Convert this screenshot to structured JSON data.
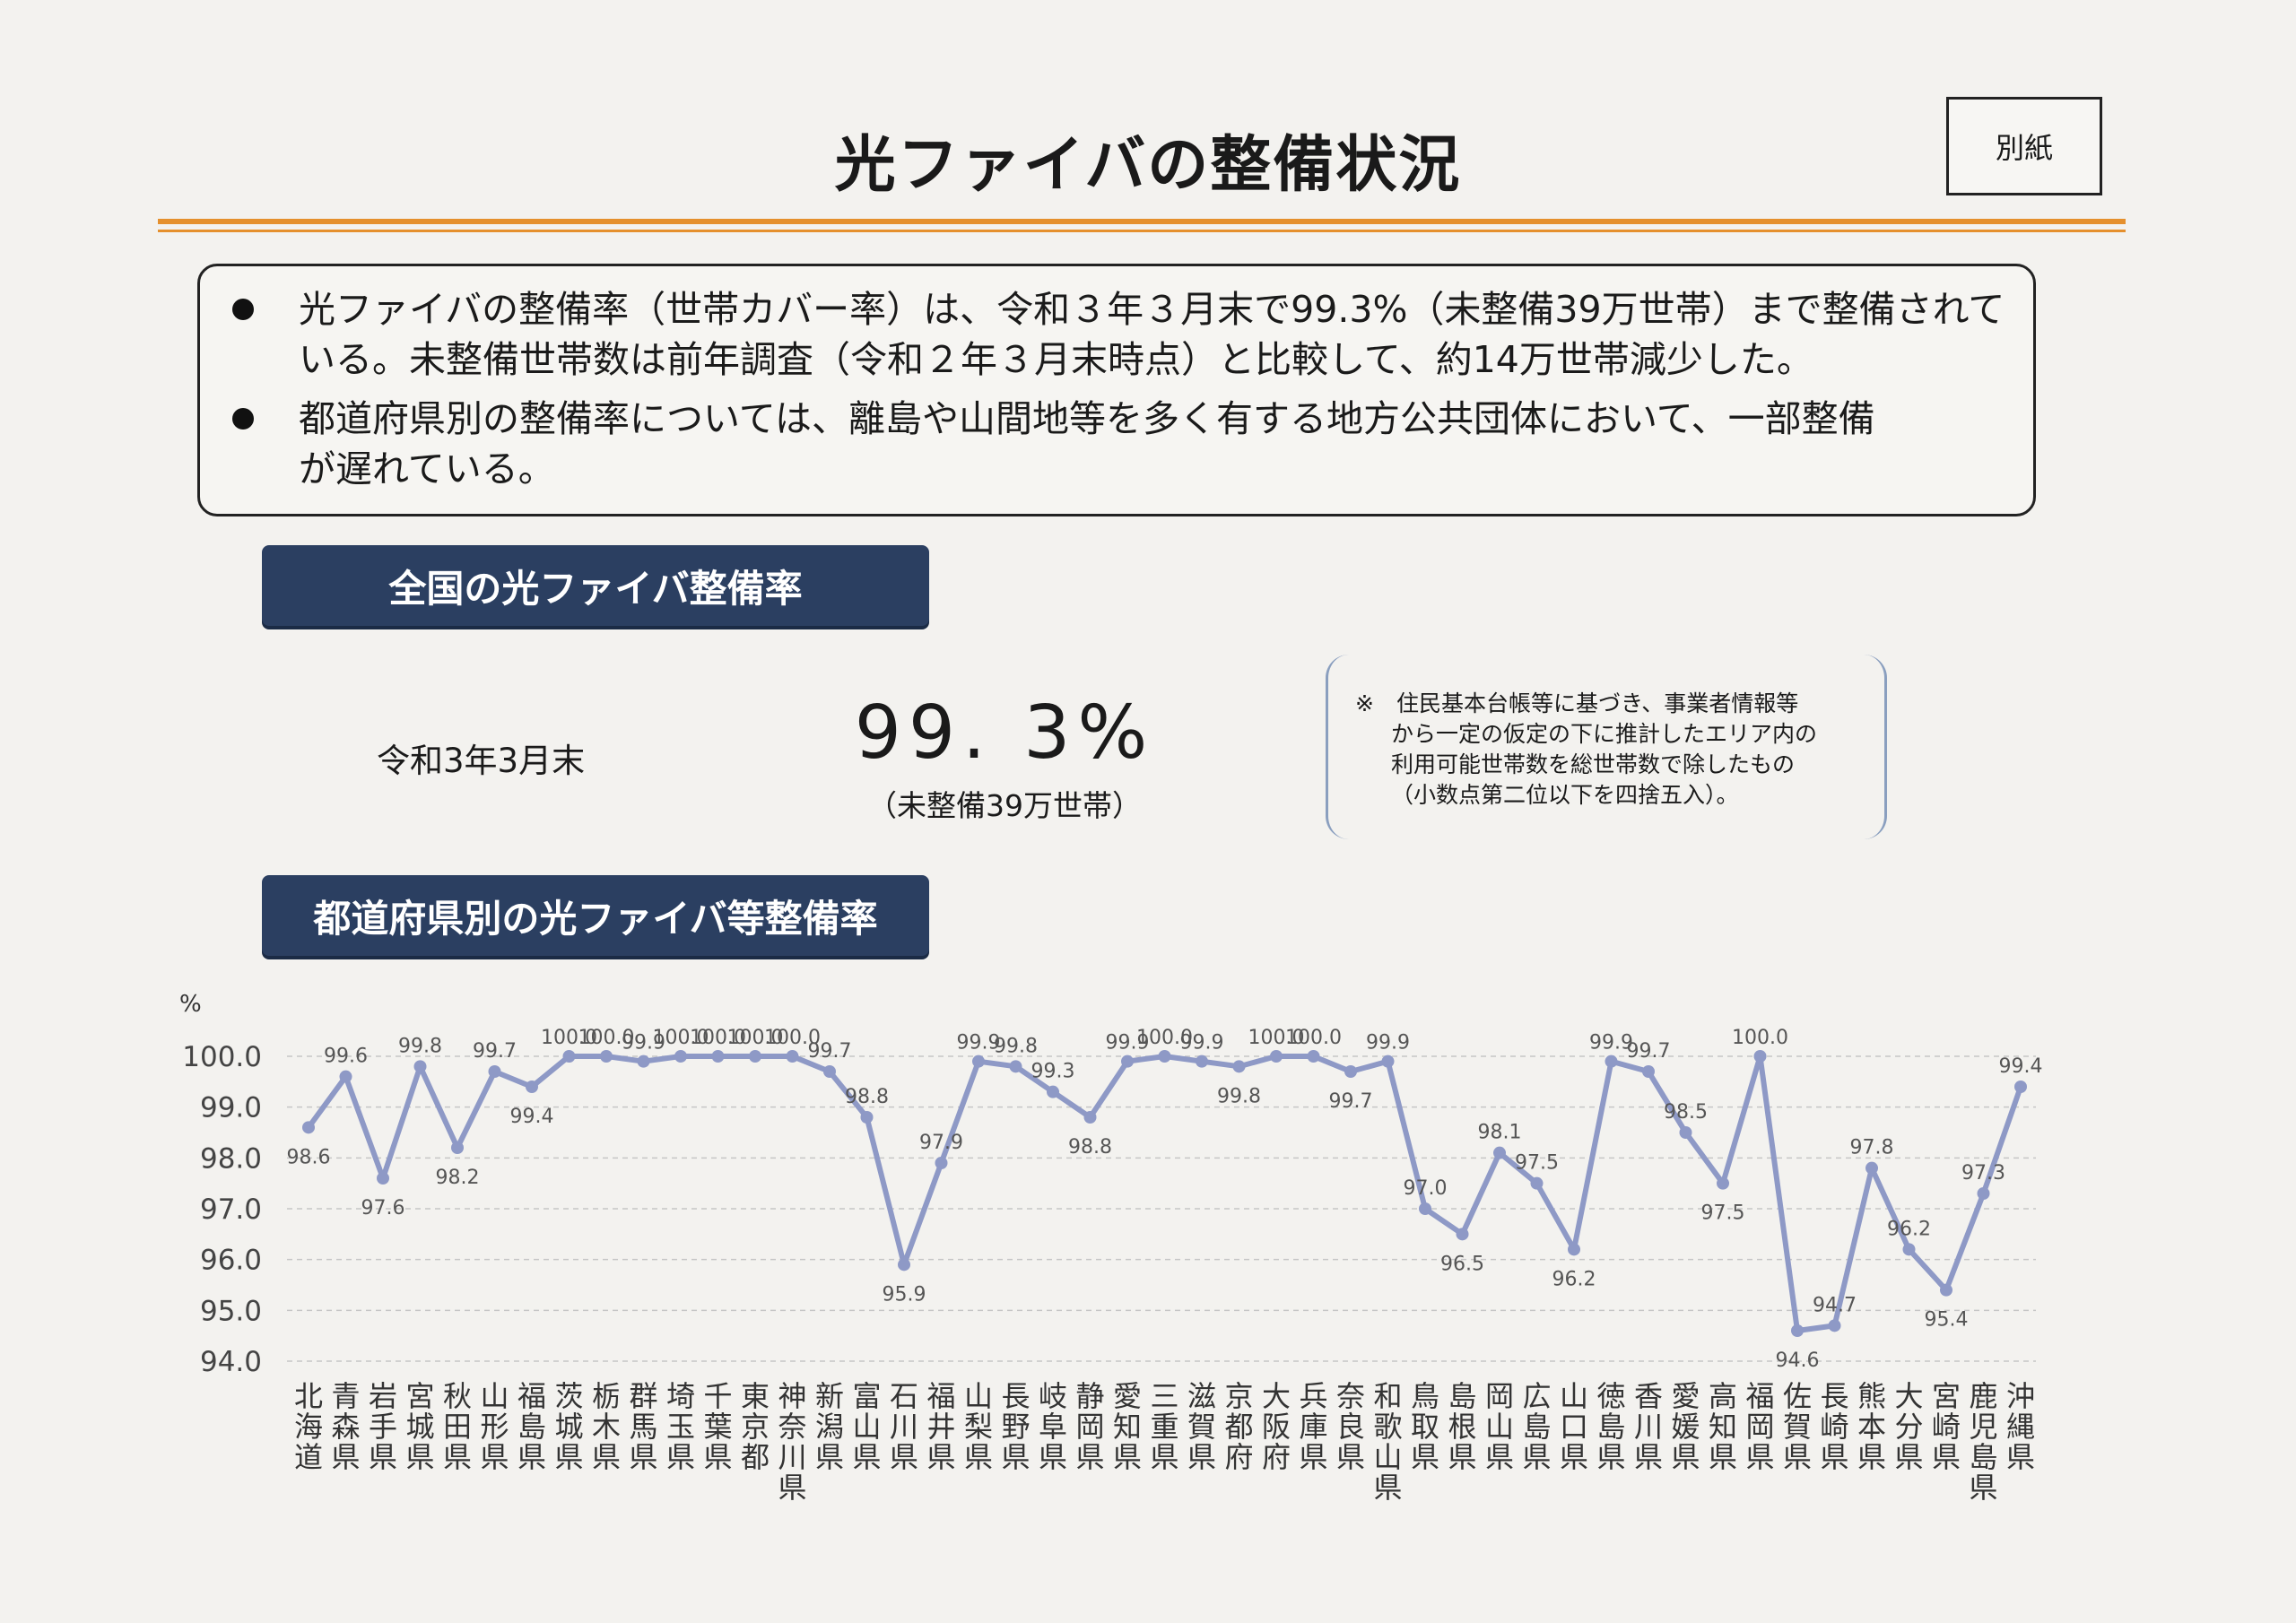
{
  "header": {
    "title": "光ファイバの整備状況",
    "tag": "別紙"
  },
  "summary": {
    "bullets": [
      {
        "lines": [
          "光ファイバの整備率（世帯カバー率）は、令和３年３月末で99.3%（未整備39万世帯）まで整備されて",
          "いる。未整備世帯数は前年調査（令和２年３月末時点）と比較して、約14万世帯減少した。"
        ]
      },
      {
        "lines": [
          "都道府県別の整備率については、離島や山間地等を多く有する地方公共団体において、一部整備",
          "が遅れている。"
        ]
      }
    ]
  },
  "national": {
    "header": "全国の光ファイバ整備率",
    "date_label": "令和3年3月末",
    "rate": "99. 3%",
    "sub": "（未整備39万世帯）",
    "note_lines": [
      "※　住民基本台帳等に基づき、事業者情報等",
      "から一定の仮定の下に推計したエリア内の",
      "利用可能世帯数を総世帯数で除したもの",
      "（小数点第二位以下を四捨五入）。"
    ]
  },
  "prefecture": {
    "header": "都道府県別の光ファイバ等整備率"
  },
  "colors": {
    "line": "#8e99c6",
    "accent_rule": "#e5902d",
    "header_bg": "#2b3f61"
  },
  "chart_data": {
    "type": "line",
    "ylabel": "%",
    "ylim": [
      94.0,
      100.0
    ],
    "yticks": [
      "100.0",
      "99.0",
      "98.0",
      "97.0",
      "96.0",
      "95.0",
      "94.0"
    ],
    "grid": true,
    "categories": [
      "北海道",
      "青森県",
      "岩手県",
      "宮城県",
      "秋田県",
      "山形県",
      "福島県",
      "茨城県",
      "栃木県",
      "群馬県",
      "埼玉県",
      "千葉県",
      "東京都",
      "神奈川県",
      "新潟県",
      "富山県",
      "石川県",
      "福井県",
      "山梨県",
      "長野県",
      "岐阜県",
      "静岡県",
      "愛知県",
      "三重県",
      "滋賀県",
      "京都府",
      "大阪府",
      "兵庫県",
      "奈良県",
      "和歌山県",
      "鳥取県",
      "島根県",
      "岡山県",
      "広島県",
      "山口県",
      "徳島県",
      "香川県",
      "愛媛県",
      "高知県",
      "福岡県",
      "佐賀県",
      "長崎県",
      "熊本県",
      "大分県",
      "宮崎県",
      "鹿児島県",
      "沖縄県"
    ],
    "series": [
      {
        "values": [
          98.6,
          99.6,
          97.6,
          99.8,
          98.2,
          99.7,
          99.4,
          100.0,
          100.0,
          99.9,
          100.0,
          100.0,
          100.0,
          100.0,
          99.7,
          98.8,
          95.9,
          97.9,
          99.9,
          99.8,
          99.3,
          98.8,
          99.9,
          100.0,
          99.9,
          99.8,
          100.0,
          100.0,
          99.7,
          99.9,
          97.0,
          96.5,
          98.1,
          97.5,
          96.2,
          99.9,
          99.7,
          98.5,
          97.5,
          100.0,
          94.6,
          94.7,
          97.8,
          96.2,
          95.4,
          97.3,
          99.4
        ],
        "labels": [
          "98.6",
          "99.6",
          "97.6",
          "99.8",
          "98.2",
          "99.7",
          "99.4",
          "100.0",
          "100.0",
          "99.9",
          "100.0",
          "100.0",
          "100.0",
          "100.0",
          "99.7",
          "98.8",
          "95.9",
          "97.9",
          "99.9",
          "99.8",
          "99.3",
          "98.8",
          "99.9",
          "100.0",
          "99.9",
          "99.8",
          "100.0",
          "100.0",
          "99.7",
          "99.9",
          "97.0",
          "96.5",
          "98.1",
          "97.5",
          "96.2",
          "99.9",
          "99.7",
          "98.5",
          "97.5",
          "100.0",
          "94.6",
          "94.7",
          "97.8",
          "96.2",
          "95.4",
          "97.3",
          "99.4"
        ]
      }
    ]
  }
}
